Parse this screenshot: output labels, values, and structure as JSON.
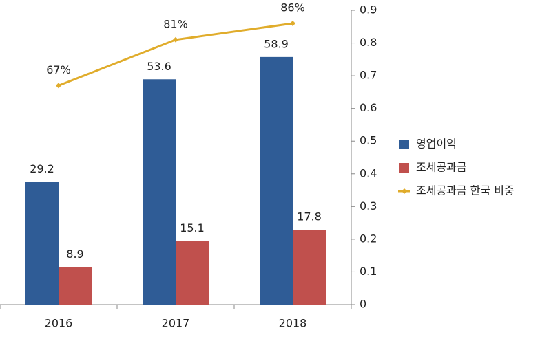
{
  "chart_data": {
    "type": "bar",
    "categories": [
      "2016",
      "2017",
      "2018"
    ],
    "series": [
      {
        "name": "영업이익",
        "color": "#2f5c96",
        "values": [
          29.2,
          53.6,
          58.9
        ]
      },
      {
        "name": "조세공과금",
        "color": "#c0504d",
        "values": [
          8.9,
          15.1,
          17.8
        ]
      },
      {
        "name": "조세공과금 한국 비중",
        "color": "#e0ac2b",
        "type": "line",
        "axis": "y2",
        "values": [
          0.67,
          0.81,
          0.86
        ],
        "value_labels": [
          "67%",
          "81%",
          "86%"
        ]
      }
    ],
    "ylim": [
      0,
      70
    ],
    "y2lim": [
      0,
      0.9
    ],
    "y2ticks": [
      0,
      0.1,
      0.2,
      0.3,
      0.4,
      0.5,
      0.6,
      0.7,
      0.8,
      0.9
    ],
    "legend": "right"
  }
}
